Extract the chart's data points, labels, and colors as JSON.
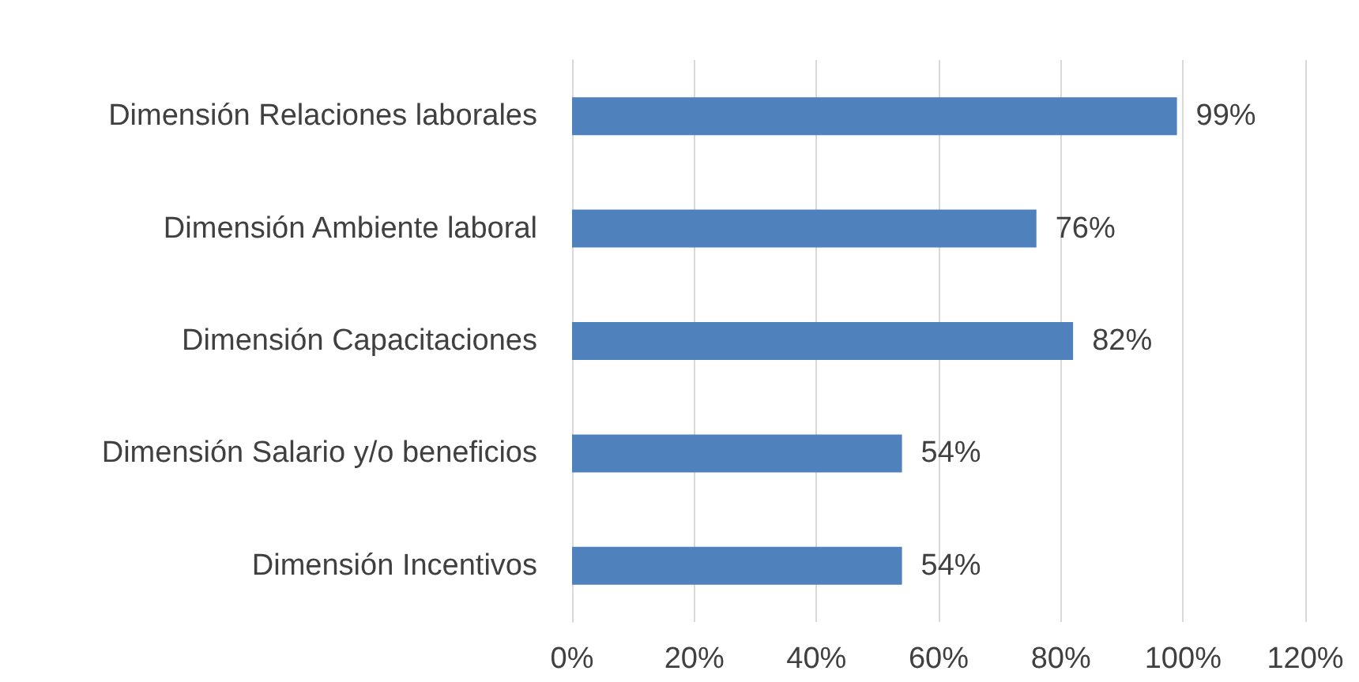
{
  "chart_data": {
    "type": "bar",
    "orientation": "horizontal",
    "categories": [
      "Dimensión Relaciones laborales",
      "Dimensión Ambiente laboral",
      "Dimensión Capacitaciones",
      "Dimensión Salario y/o beneficios",
      "Dimensión Incentivos"
    ],
    "values": [
      99,
      76,
      82,
      54,
      54
    ],
    "value_labels": [
      "99%",
      "76%",
      "82%",
      "54%",
      "54%"
    ],
    "color": "#4f81bd",
    "xlim": [
      0,
      120
    ],
    "xticks": [
      {
        "value": 0,
        "label": "0%"
      },
      {
        "value": 20,
        "label": "20%"
      },
      {
        "value": 40,
        "label": "40%"
      },
      {
        "value": 60,
        "label": "60%"
      },
      {
        "value": 80,
        "label": "80%"
      },
      {
        "value": 100,
        "label": "100%"
      },
      {
        "value": 120,
        "label": "120%"
      }
    ],
    "grid": "x"
  }
}
